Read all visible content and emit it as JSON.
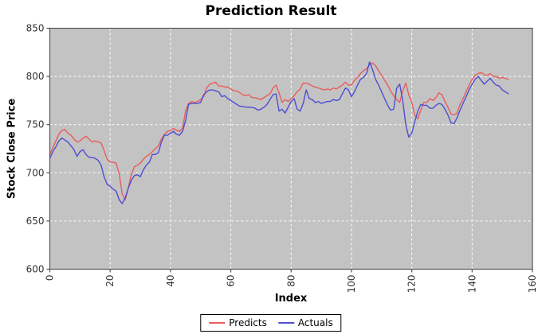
{
  "chart": {
    "title": "Prediction Result",
    "ylabel": "Stock Close Price",
    "xlabel": "Index"
  },
  "chart_data": {
    "type": "line",
    "title": "Prediction Result",
    "xlabel": "Index",
    "ylabel": "Stock Close Price",
    "xlim": [
      0,
      160
    ],
    "ylim": [
      600,
      850
    ],
    "x_ticks": [
      0,
      20,
      40,
      60,
      80,
      100,
      120,
      140,
      160
    ],
    "y_ticks": [
      600,
      650,
      700,
      750,
      800,
      850
    ],
    "grid": true,
    "legend_position": "bottom",
    "plot_background": "#c3c3c3",
    "gridline_color": "#ffffff",
    "border_color": "#555555",
    "tick_label_color": "#333333",
    "series": [
      {
        "name": "Predicts",
        "color": "#e95c5c",
        "values": [
          719,
          726,
          733,
          740,
          744,
          745,
          741,
          739,
          735,
          732,
          733,
          736,
          738,
          735,
          732,
          733,
          732,
          731,
          723,
          714,
          711,
          711,
          710,
          699,
          678,
          672,
          684,
          698,
          706,
          708,
          710,
          714,
          717,
          719,
          722,
          725,
          728,
          735,
          740,
          743,
          744,
          746,
          744,
          743,
          746,
          764,
          772,
          774,
          773,
          774,
          776,
          779,
          788,
          792,
          793,
          794,
          790,
          790,
          789,
          789,
          787,
          785,
          785,
          783,
          781,
          780,
          781,
          778,
          778,
          777,
          776,
          778,
          780,
          782,
          788,
          791,
          783,
          773,
          776,
          774,
          777,
          780,
          784,
          787,
          793,
          793,
          792,
          790,
          789,
          788,
          787,
          786,
          787,
          786,
          788,
          787,
          789,
          791,
          794,
          791,
          791,
          796,
          799,
          803,
          806,
          808,
          812,
          814,
          811,
          806,
          801,
          796,
          791,
          785,
          780,
          776,
          773,
          785,
          793,
          781,
          773,
          760,
          756,
          765,
          773,
          773,
          777,
          775,
          778,
          783,
          781,
          774,
          768,
          761,
          760,
          762,
          771,
          777,
          784,
          791,
          797,
          801,
          803,
          804,
          802,
          801,
          803,
          800,
          800,
          798,
          799,
          798,
          797
        ]
      },
      {
        "name": "Actuals",
        "color": "#4e4ed2",
        "values": [
          715,
          722,
          727,
          733,
          736,
          734,
          732,
          728,
          724,
          717,
          722,
          724,
          719,
          716,
          716,
          715,
          713,
          708,
          696,
          688,
          686,
          683,
          681,
          672,
          668,
          674,
          684,
          692,
          697,
          698,
          696,
          703,
          708,
          711,
          719,
          719,
          721,
          732,
          739,
          739,
          741,
          743,
          740,
          739,
          743,
          754,
          771,
          772,
          772,
          772,
          773,
          781,
          784,
          786,
          786,
          785,
          784,
          779,
          780,
          777,
          775,
          773,
          771,
          769,
          769,
          768,
          768,
          768,
          767,
          765,
          766,
          768,
          771,
          776,
          781,
          782,
          764,
          766,
          762,
          768,
          774,
          777,
          766,
          764,
          772,
          786,
          777,
          776,
          773,
          774,
          772,
          773,
          774,
          774,
          776,
          775,
          776,
          782,
          788,
          786,
          779,
          784,
          791,
          797,
          799,
          803,
          815,
          807,
          797,
          791,
          784,
          777,
          770,
          765,
          766,
          788,
          792,
          775,
          750,
          737,
          741,
          753,
          764,
          771,
          770,
          770,
          767,
          767,
          770,
          772,
          771,
          766,
          760,
          752,
          751,
          757,
          765,
          772,
          779,
          786,
          792,
          797,
          800,
          796,
          792,
          795,
          798,
          794,
          791,
          790,
          786,
          784,
          782
        ]
      }
    ]
  }
}
